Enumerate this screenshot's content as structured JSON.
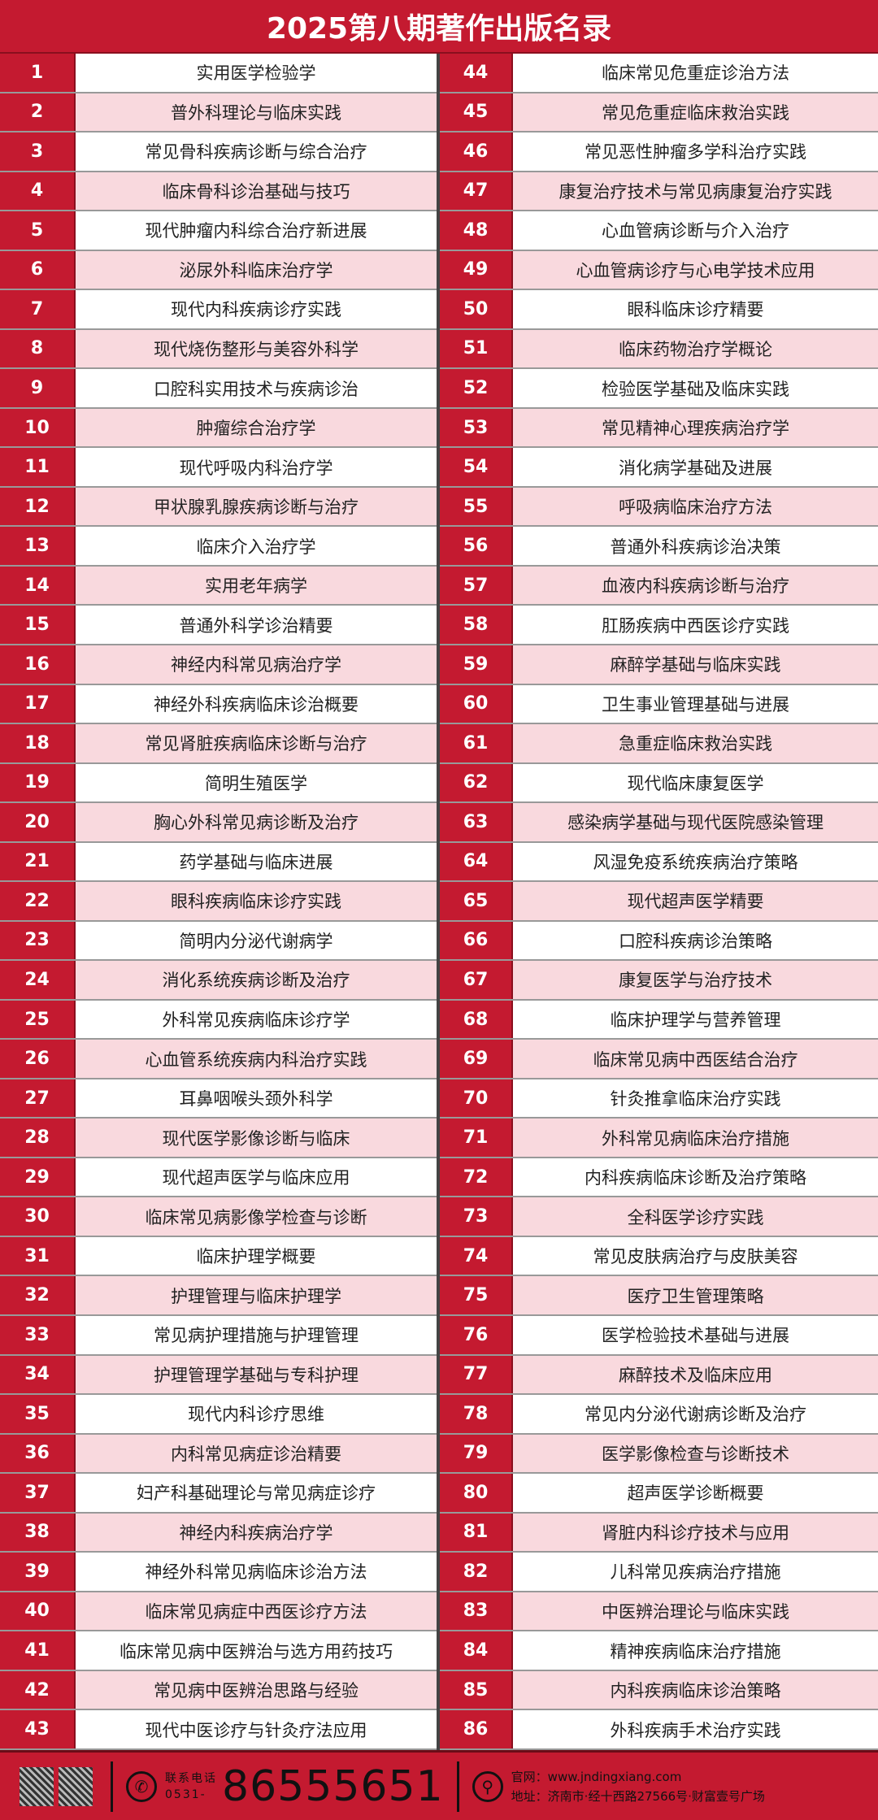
{
  "title": "2025第八期著作出版名录",
  "colors": {
    "accent": "#c41a30",
    "alt_row": "#f9d9de"
  },
  "left": [
    "实用医学检验学",
    "普外科理论与临床实践",
    "常见骨科疾病诊断与综合治疗",
    "临床骨科诊治基础与技巧",
    "现代肿瘤内科综合治疗新进展",
    "泌尿外科临床治疗学",
    "现代内科疾病诊疗实践",
    "现代烧伤整形与美容外科学",
    "口腔科实用技术与疾病诊治",
    "肿瘤综合治疗学",
    "现代呼吸内科治疗学",
    "甲状腺乳腺疾病诊断与治疗",
    "临床介入治疗学",
    "实用老年病学",
    "普通外科学诊治精要",
    "神经内科常见病治疗学",
    "神经外科疾病临床诊治概要",
    "常见肾脏疾病临床诊断与治疗",
    "简明生殖医学",
    "胸心外科常见病诊断及治疗",
    "药学基础与临床进展",
    "眼科疾病临床诊疗实践",
    "简明内分泌代谢病学",
    "消化系统疾病诊断及治疗",
    "外科常见疾病临床诊疗学",
    "心血管系统疾病内科治疗实践",
    "耳鼻咽喉头颈外科学",
    "现代医学影像诊断与临床",
    "现代超声医学与临床应用",
    "临床常见病影像学检查与诊断",
    "临床护理学概要",
    "护理管理与临床护理学",
    "常见病护理措施与护理管理",
    "护理管理学基础与专科护理",
    "现代内科诊疗思维",
    "内科常见病症诊治精要",
    "妇产科基础理论与常见病症诊疗",
    "神经内科疾病治疗学",
    "神经外科常见病临床诊治方法",
    "临床常见病症中西医诊疗方法",
    "临床常见病中医辨治与选方用药技巧",
    "常见病中医辨治思路与经验",
    "现代中医诊疗与针灸疗法应用"
  ],
  "right": [
    "临床常见危重症诊治方法",
    "常见危重症临床救治实践",
    "常见恶性肿瘤多学科治疗实践",
    "康复治疗技术与常见病康复治疗实践",
    "心血管病诊断与介入治疗",
    "心血管病诊疗与心电学技术应用",
    "眼科临床诊疗精要",
    "临床药物治疗学概论",
    "检验医学基础及临床实践",
    "常见精神心理疾病治疗学",
    "消化病学基础及进展",
    "呼吸病临床治疗方法",
    "普通外科疾病诊治决策",
    "血液内科疾病诊断与治疗",
    "肛肠疾病中西医诊疗实践",
    "麻醉学基础与临床实践",
    "卫生事业管理基础与进展",
    "急重症临床救治实践",
    "现代临床康复医学",
    "感染病学基础与现代医院感染管理",
    "风湿免疫系统疾病治疗策略",
    "现代超声医学精要",
    "口腔科疾病诊治策略",
    "康复医学与治疗技术",
    "临床护理学与营养管理",
    "临床常见病中西医结合治疗",
    "针灸推拿临床治疗实践",
    "外科常见病临床治疗措施",
    "内科疾病临床诊断及治疗策略",
    "全科医学诊疗实践",
    "常见皮肤病治疗与皮肤美容",
    "医疗卫生管理策略",
    "医学检验技术基础与进展",
    "麻醉技术及临床应用",
    "常见内分泌代谢病诊断及治疗",
    "医学影像检查与诊断技术",
    "超声医学诊断概要",
    "肾脏内科诊疗技术与应用",
    "儿科常见疾病治疗措施",
    "中医辨治理论与临床实践",
    "精神疾病临床治疗措施",
    "内科疾病临床诊治策略",
    "外科疾病手术治疗实践"
  ],
  "footer": {
    "phone_label": "联系电话",
    "phone_area": "0531-",
    "phone_number": "86555651",
    "website": "官网：www.jndingxiang.com",
    "address": "地址：济南市·经十西路27566号·财富壹号广场",
    "icons": [
      "qr-code",
      "phone-icon",
      "location-pin-icon"
    ]
  }
}
